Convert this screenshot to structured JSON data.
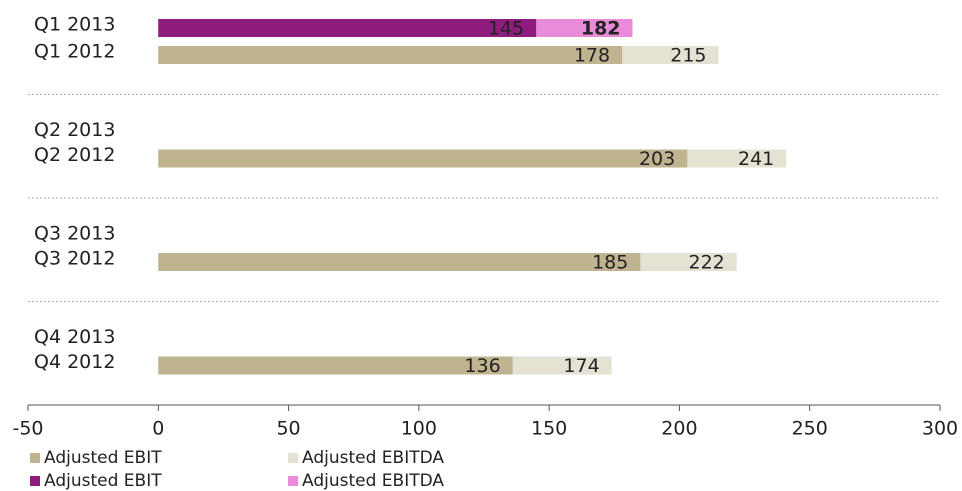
{
  "chart_data": {
    "type": "bar",
    "orientation": "horizontal",
    "categories": [
      "Q1 2013",
      "Q1 2012",
      "Q2 2013",
      "Q2 2012",
      "Q3 2013",
      "Q3 2012",
      "Q4 2013",
      "Q4 2012"
    ],
    "series": [
      {
        "name": "Adjusted EBITDA",
        "color": "#e5e2d4",
        "values": [
          null,
          215,
          null,
          241,
          null,
          222,
          null,
          174
        ]
      },
      {
        "name": "Adjusted EBIT",
        "color": "#bfb48f",
        "values": [
          null,
          178,
          null,
          203,
          null,
          185,
          null,
          136
        ]
      },
      {
        "name": "Adjusted EBITDA",
        "color": "#e98bd8",
        "values": [
          182,
          null,
          null,
          null,
          null,
          null,
          null,
          null
        ]
      },
      {
        "name": "Adjusted EBIT",
        "color": "#8e1b7e",
        "values": [
          145,
          null,
          null,
          null,
          null,
          null,
          null,
          null
        ]
      }
    ],
    "xlim": [
      -50,
      300
    ],
    "xticks": [
      -50,
      0,
      50,
      100,
      150,
      200,
      250,
      300
    ]
  }
}
